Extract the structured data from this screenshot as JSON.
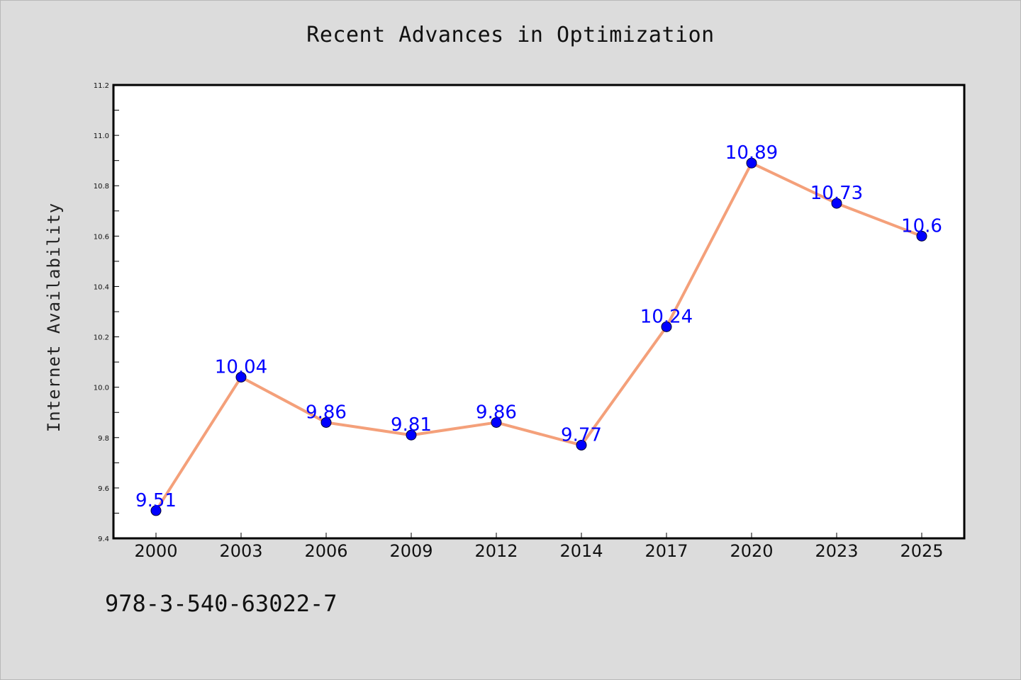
{
  "chart_data": {
    "type": "line",
    "title": "Recent Advances in Optimization",
    "xlabel": "",
    "ylabel": "Internet Availability",
    "categories": [
      "2000",
      "2003",
      "2006",
      "2009",
      "2012",
      "2014",
      "2017",
      "2020",
      "2023",
      "2025"
    ],
    "values": [
      9.51,
      10.04,
      9.86,
      9.81,
      9.86,
      9.77,
      10.24,
      10.89,
      10.73,
      10.6
    ],
    "data_labels": [
      "9.51",
      "10.04",
      "9.86",
      "9.81",
      "9.86",
      "9.77",
      "10.24",
      "10.89",
      "10.73",
      "10.6"
    ],
    "ylim": [
      9.4,
      11.2
    ],
    "yticks": [
      "9.4",
      "9.6",
      "9.8",
      "10.0",
      "10.2",
      "10.4",
      "10.6",
      "10.8",
      "11.0",
      "11.2"
    ],
    "ytick_values": [
      9.4,
      9.6,
      9.8,
      10.0,
      10.2,
      10.4,
      10.6,
      10.8,
      11.0,
      11.2
    ],
    "grid": false,
    "legend": "none",
    "colors": {
      "line": "#f4a07a",
      "marker": "#0000ff",
      "label": "#0000ff"
    }
  },
  "footer": {
    "isbn": "978-3-540-63022-7"
  }
}
